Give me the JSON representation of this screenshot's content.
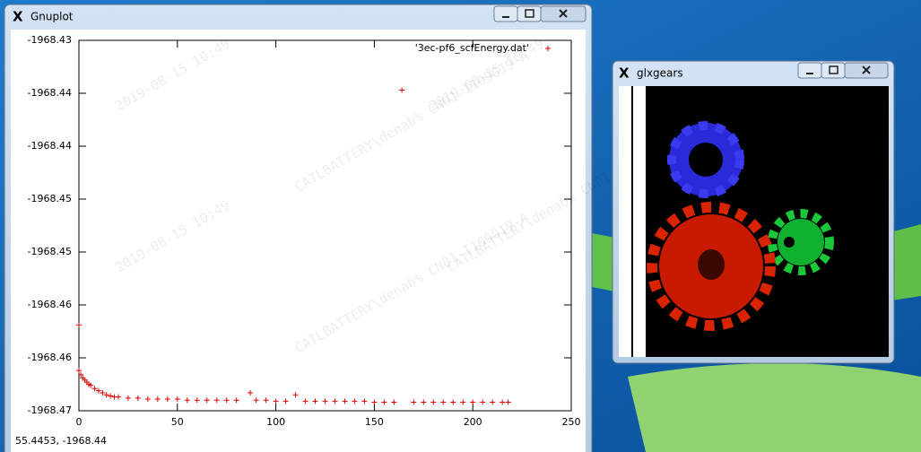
{
  "gnuplot_window": {
    "title": "Gnuplot",
    "status": "55.4453, -1968.44"
  },
  "glxgears_window": {
    "title": "glxgears"
  },
  "watermark": [
    "2019-08-15 10:49",
    "CATLBATTERY\\denab% CN01-I109019-A"
  ],
  "chart_data": {
    "type": "scatter",
    "xlim": [
      0,
      250
    ],
    "xticks": [
      0,
      50,
      100,
      150,
      200,
      250
    ],
    "ylim": [
      -1968.465,
      -1968.43
    ],
    "yticks": [
      -1968.43,
      {
        "value": -1968.435,
        "label": "-1968.44"
      },
      {
        "value": -1968.44,
        "label": "-1968.44"
      },
      {
        "value": -1968.445,
        "label": "-1968.45"
      },
      {
        "value": -1968.45,
        "label": "-1968.45"
      },
      {
        "value": -1968.455,
        "label": "-1968.46"
      },
      {
        "value": -1968.46,
        "label": "-1968.46"
      },
      {
        "value": -1968.465,
        "label": "-1968.47"
      }
    ],
    "grid": false,
    "legend": "top-right",
    "series": [
      {
        "name": "'3ec-pf6_scfEnergy.dat'",
        "color": "#e00000",
        "marker": "+",
        "x": [
          0,
          0,
          1,
          2,
          3,
          4,
          5,
          6,
          8,
          10,
          12,
          14,
          16,
          18,
          20,
          25,
          30,
          35,
          40,
          45,
          50,
          55,
          60,
          65,
          70,
          75,
          80,
          87,
          90,
          95,
          100,
          105,
          110,
          115,
          120,
          125,
          130,
          135,
          140,
          145,
          150,
          155,
          160,
          164,
          170,
          175,
          180,
          185,
          190,
          195,
          200,
          205,
          210,
          215,
          218
        ],
        "values": [
          -1968.4569,
          -1968.4612,
          -1968.4616,
          -1968.4619,
          -1968.4621,
          -1968.4623,
          -1968.4625,
          -1968.4626,
          -1968.4629,
          -1968.4631,
          -1968.4633,
          -1968.4635,
          -1968.4636,
          -1968.4637,
          -1968.4637,
          -1968.4638,
          -1968.4638,
          -1968.4639,
          -1968.4639,
          -1968.4639,
          -1968.4639,
          -1968.464,
          -1968.464,
          -1968.464,
          -1968.464,
          -1968.464,
          -1968.464,
          -1968.4633,
          -1968.464,
          -1968.464,
          -1968.4641,
          -1968.4641,
          -1968.4635,
          -1968.4641,
          -1968.4641,
          -1968.4641,
          -1968.4641,
          -1968.4641,
          -1968.4641,
          -1968.4641,
          -1968.4642,
          -1968.4642,
          -1968.4642,
          -1968.4347,
          -1968.4642,
          -1968.4642,
          -1968.4642,
          -1968.4642,
          -1968.4642,
          -1968.4642,
          -1968.4642,
          -1968.4642,
          -1968.4642,
          -1968.4642,
          -1968.4642
        ]
      }
    ]
  }
}
